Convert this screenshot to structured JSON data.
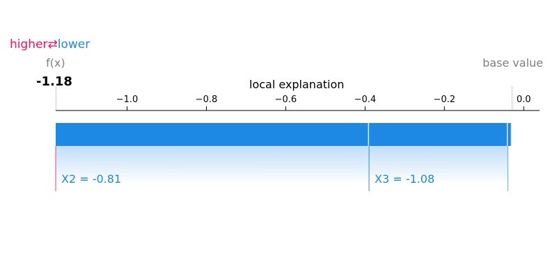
{
  "legend": {
    "higher": "higher",
    "lower": "lower",
    "arrows": "⇄"
  },
  "fx": {
    "label": "f(x)",
    "value": "-1.18"
  },
  "base": {
    "label": "base value"
  },
  "chart_data": {
    "type": "force_plot",
    "title": "local explanation",
    "xlim": [
      -1.18,
      0.04
    ],
    "ticks": [
      -1.0,
      -0.8,
      -0.6,
      -0.4,
      -0.2,
      0.0
    ],
    "tick_labels": [
      "−1.0",
      "−0.8",
      "−0.6",
      "−0.4",
      "−0.2",
      "0.0"
    ],
    "output_value": -1.18,
    "base_value": -0.03,
    "segments": [
      {
        "label": "X2 = -0.81",
        "from": -0.39,
        "to": -1.18,
        "direction": "lower"
      },
      {
        "label": "X3 = -1.08",
        "from": -0.04,
        "to": -0.39,
        "direction": "lower"
      },
      {
        "label": "",
        "from": -0.03,
        "to": -0.04,
        "direction": "lower"
      }
    ],
    "colors": {
      "lower": "#1e88e5",
      "higher": "#ff0d57",
      "text": "#1e88e5"
    }
  }
}
